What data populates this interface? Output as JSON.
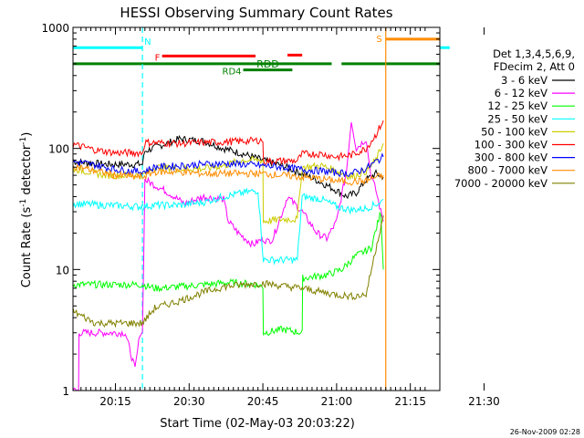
{
  "chart_data": {
    "type": "line",
    "title": "HESSI Observing Summary Count Rates",
    "xlabel": "Start Time (02-May-03 20:03:22)",
    "ylabel_main": "Count Rate (s",
    "ylabel_sup1": "-1",
    "ylabel_mid": " detector",
    "ylabel_sup2": "-1",
    "ylabel_end": ")",
    "yscale": "log",
    "ylim": [
      1,
      1000
    ],
    "xlim_min": [
      3.37,
      78
    ],
    "y_ticks": [
      {
        "value": 1,
        "label": "1"
      },
      {
        "value": 10,
        "label": "10"
      },
      {
        "value": 100,
        "label": "100"
      },
      {
        "value": 1000,
        "label": "1000"
      }
    ],
    "x_ticks": [
      {
        "value": 12,
        "label": "20:15"
      },
      {
        "value": 27,
        "label": "20:30"
      },
      {
        "value": 42,
        "label": "20:45"
      },
      {
        "value": 57,
        "label": "21:00"
      },
      {
        "value": 72,
        "label": "21:15"
      },
      {
        "value": 87,
        "label": "21:30"
      }
    ],
    "legend": {
      "placement": "right",
      "header": [
        "Det 1,3,4,5,6,9,",
        "FDecim 2, Att 0"
      ],
      "entries": [
        {
          "label": "3 - 6 keV",
          "color": "#000000"
        },
        {
          "label": "6 - 12 keV",
          "color": "#ff00ff"
        },
        {
          "label": "12 - 25 keV",
          "color": "#00ff00"
        },
        {
          "label": "25 - 50 keV",
          "color": "#00ffff"
        },
        {
          "label": "50 - 100 keV",
          "color": "#cccc00"
        },
        {
          "label": "100 - 300 keV",
          "color": "#ff0000"
        },
        {
          "label": "300 - 800 keV",
          "color": "#0000ff"
        },
        {
          "label": "800 - 7000 keV",
          "color": "#ff8c00"
        },
        {
          "label": "7000 - 20000 keV",
          "color": "#808000"
        }
      ]
    },
    "flag_bars": [
      {
        "label": "N",
        "color": "#00ffff",
        "segments": [
          [
            3.4,
            17.5
          ]
        ],
        "level": 680
      },
      {
        "label": "F",
        "color": "#ff0000",
        "segments": [
          [
            21.5,
            40.5
          ]
        ],
        "level": 580
      },
      {
        "label": "",
        "color": "#ff0000",
        "segments": [
          [
            47,
            50
          ]
        ],
        "level": 590
      },
      {
        "label": "RDD",
        "color": "#008000",
        "segments": [
          [
            3.4,
            56
          ],
          [
            58,
            78
          ]
        ],
        "level": 500
      },
      {
        "label": "RD4",
        "color": "#008000",
        "segments": [
          [
            38,
            48
          ]
        ],
        "level": 445
      },
      {
        "label": "S",
        "color": "#ff8c00",
        "segments": [
          [
            67,
            95.5
          ]
        ],
        "level": 800
      },
      {
        "label": "",
        "color": "#00ffff",
        "segments": [
          [
            80,
            98.5
          ]
        ],
        "level": 680
      }
    ],
    "markers": [
      {
        "x": 17.5,
        "color": "#00ffff",
        "style": "dashed"
      },
      {
        "x": 67,
        "color": "#ff8c00",
        "style": "solid"
      },
      {
        "x": 80.5,
        "color": "#00ffff",
        "style": "solid"
      },
      {
        "x": 95.5,
        "color": "#ff8c00",
        "style": "dashed"
      },
      {
        "x": 98.5,
        "color": "#00ffff",
        "style": "dashed"
      }
    ],
    "series": [
      {
        "name": "3 - 6 keV",
        "color": "#000000",
        "points": [
          [
            3.4,
            78
          ],
          [
            10,
            74
          ],
          [
            17.5,
            74
          ],
          [
            18,
            95
          ],
          [
            25,
            120
          ],
          [
            30,
            115
          ],
          [
            34,
            100
          ],
          [
            38,
            90
          ],
          [
            42,
            80
          ],
          [
            46,
            72
          ],
          [
            50,
            62
          ],
          [
            54,
            52
          ],
          [
            57,
            45
          ],
          [
            59,
            40
          ],
          [
            61,
            43
          ],
          [
            63,
            55
          ],
          [
            65,
            62
          ],
          [
            66.5,
            58
          ]
        ]
      },
      {
        "name": "6 - 12 keV",
        "color": "#ff00ff",
        "points": [
          [
            3.4,
            1.0
          ],
          [
            4.5,
            1.0
          ],
          [
            4.6,
            3
          ],
          [
            10,
            3
          ],
          [
            14,
            3
          ],
          [
            16,
            1.5
          ],
          [
            17,
            3
          ],
          [
            17.5,
            3.0
          ],
          [
            18,
            55
          ],
          [
            22,
            45
          ],
          [
            24,
            40
          ],
          [
            26,
            35
          ],
          [
            30,
            40
          ],
          [
            34,
            38
          ],
          [
            35,
            25
          ],
          [
            37,
            20
          ],
          [
            40,
            16
          ],
          [
            42,
            18
          ],
          [
            43,
            17
          ],
          [
            44,
            18
          ],
          [
            46,
            30
          ],
          [
            47,
            40
          ],
          [
            50,
            30
          ],
          [
            53,
            20
          ],
          [
            55,
            18
          ],
          [
            57,
            25
          ],
          [
            59,
            65
          ],
          [
            60,
            170
          ],
          [
            61,
            100
          ],
          [
            63,
            120
          ],
          [
            64,
            60
          ],
          [
            65,
            45
          ],
          [
            66,
            30
          ],
          [
            66.5,
            25
          ]
        ]
      },
      {
        "name": "12 - 25 keV",
        "color": "#00ff00",
        "points": [
          [
            3.4,
            7.5
          ],
          [
            10,
            7.5
          ],
          [
            17.5,
            7.5
          ],
          [
            20,
            7.0
          ],
          [
            25,
            7.2
          ],
          [
            30,
            7.5
          ],
          [
            35,
            7.8
          ],
          [
            40,
            7.6
          ],
          [
            42,
            7.2
          ],
          [
            42.1,
            3
          ],
          [
            46,
            3.2
          ],
          [
            50,
            3.0
          ],
          [
            50.1,
            8.5
          ],
          [
            55,
            9
          ],
          [
            58,
            10
          ],
          [
            61,
            13
          ],
          [
            64,
            15
          ],
          [
            66,
            30
          ],
          [
            66.5,
            10
          ]
        ]
      },
      {
        "name": "25 - 50 keV",
        "color": "#00ffff",
        "points": [
          [
            3.4,
            35
          ],
          [
            10,
            34
          ],
          [
            17.5,
            33
          ],
          [
            20,
            34
          ],
          [
            25,
            34
          ],
          [
            30,
            36
          ],
          [
            34,
            40
          ],
          [
            38,
            43
          ],
          [
            41,
            45
          ],
          [
            42.1,
            12
          ],
          [
            45,
            12
          ],
          [
            48,
            12
          ],
          [
            49,
            12
          ],
          [
            50,
            40
          ],
          [
            54,
            38
          ],
          [
            57,
            33
          ],
          [
            60,
            31
          ],
          [
            63,
            32
          ],
          [
            66,
            36
          ],
          [
            66.5,
            38
          ]
        ]
      },
      {
        "name": "50 - 100 keV",
        "color": "#cccc00",
        "points": [
          [
            3.4,
            68
          ],
          [
            10,
            60
          ],
          [
            17.5,
            60
          ],
          [
            20,
            70
          ],
          [
            25,
            68
          ],
          [
            30,
            68
          ],
          [
            34,
            72
          ],
          [
            38,
            80
          ],
          [
            42,
            80
          ],
          [
            42.1,
            25
          ],
          [
            46,
            26
          ],
          [
            49,
            26
          ],
          [
            50,
            70
          ],
          [
            54,
            72
          ],
          [
            57,
            65
          ],
          [
            60,
            58
          ],
          [
            63,
            65
          ],
          [
            65,
            80
          ],
          [
            66.5,
            110
          ]
        ]
      },
      {
        "name": "100 - 300 keV",
        "color": "#ff0000",
        "points": [
          [
            3.4,
            108
          ],
          [
            8,
            97
          ],
          [
            12,
            92
          ],
          [
            17.5,
            92
          ],
          [
            18,
            112
          ],
          [
            25,
            110
          ],
          [
            30,
            112
          ],
          [
            34,
            113
          ],
          [
            38,
            115
          ],
          [
            42,
            117
          ],
          [
            42.1,
            78
          ],
          [
            46,
            79
          ],
          [
            49,
            79
          ],
          [
            50,
            90
          ],
          [
            54,
            90
          ],
          [
            57,
            85
          ],
          [
            60,
            88
          ],
          [
            63,
            100
          ],
          [
            65,
            130
          ],
          [
            66.5,
            170
          ]
        ]
      },
      {
        "name": "300 - 800 keV",
        "color": "#0000ff",
        "points": [
          [
            3.4,
            78
          ],
          [
            8,
            73
          ],
          [
            12,
            67
          ],
          [
            17.5,
            64
          ],
          [
            20,
            70
          ],
          [
            25,
            72
          ],
          [
            30,
            74
          ],
          [
            34,
            75
          ],
          [
            38,
            74
          ],
          [
            42,
            72
          ],
          [
            46,
            70
          ],
          [
            50,
            67
          ],
          [
            54,
            65
          ],
          [
            57,
            63
          ],
          [
            60,
            62
          ],
          [
            63,
            68
          ],
          [
            65,
            78
          ],
          [
            66.5,
            85
          ]
        ]
      },
      {
        "name": "800 - 7000 keV",
        "color": "#ff8c00",
        "points": [
          [
            3.4,
            72
          ],
          [
            8,
            65
          ],
          [
            12,
            60
          ],
          [
            17.5,
            58
          ],
          [
            20,
            64
          ],
          [
            25,
            64
          ],
          [
            30,
            62
          ],
          [
            34,
            62
          ],
          [
            38,
            62
          ],
          [
            42,
            62
          ],
          [
            46,
            60
          ],
          [
            50,
            58
          ],
          [
            54,
            56
          ],
          [
            57,
            54
          ],
          [
            60,
            53
          ],
          [
            63,
            54
          ],
          [
            65,
            58
          ],
          [
            66.5,
            60
          ]
        ]
      },
      {
        "name": "7000 - 20000 keV",
        "color": "#808000",
        "points": [
          [
            3.4,
            4.5
          ],
          [
            8,
            3.6
          ],
          [
            12,
            3.6
          ],
          [
            17.5,
            3.6
          ],
          [
            20,
            4.8
          ],
          [
            25,
            5.5
          ],
          [
            30,
            6.5
          ],
          [
            34,
            7.2
          ],
          [
            38,
            7.5
          ],
          [
            42,
            7.7
          ],
          [
            46,
            7.3
          ],
          [
            50,
            7.0
          ],
          [
            54,
            6.5
          ],
          [
            57,
            6.2
          ],
          [
            60,
            6.0
          ],
          [
            63,
            6.2
          ],
          [
            65,
            15
          ],
          [
            66.5,
            28
          ]
        ]
      }
    ],
    "right_edge_ticks": [
      {
        "value": 100,
        "color": "#ff0000"
      },
      {
        "value": 80,
        "color": "#0000ff"
      }
    ],
    "timestamp": "26-Nov-2009 02:28"
  }
}
